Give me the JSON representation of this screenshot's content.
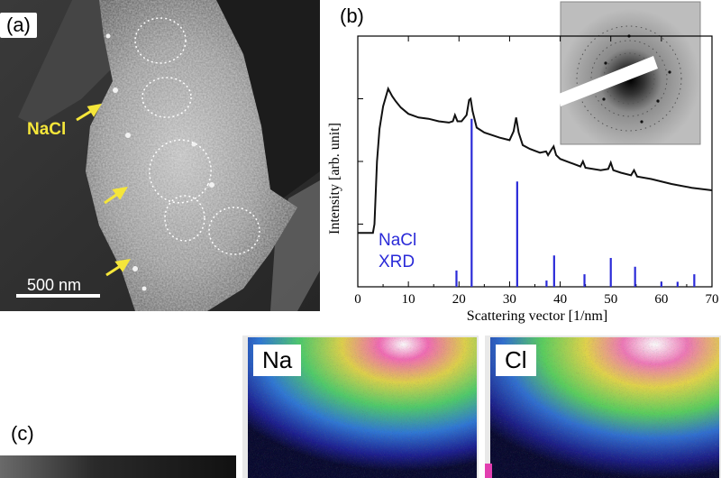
{
  "panel_a": {
    "label": "(a)",
    "annotation": "NaCl",
    "scale_bar": "500 nm"
  },
  "panel_b": {
    "label": "(b)",
    "legend_text": [
      "NaCl",
      "XRD"
    ]
  },
  "panel_c": {
    "label": "(c)",
    "maps": [
      {
        "element": "Na"
      },
      {
        "element": "Cl"
      }
    ]
  },
  "colors": {
    "measured_curve": "#111111",
    "xrd_bars": "#2a2ad8",
    "legend_text": "#2a2ad8",
    "nacl_annotation": "#f5e63a"
  },
  "chart_data": {
    "type": "line",
    "xlabel": "Scattering vector [1/nm]",
    "ylabel": "Intensity [arb. unit]",
    "xlim": [
      0,
      70
    ],
    "x_ticks": [
      0,
      10,
      20,
      30,
      40,
      50,
      60,
      70
    ],
    "series": [
      {
        "kind": "line",
        "x": [
          0,
          3.0,
          3.3,
          3.8,
          4.3,
          5.0,
          6.0,
          6.8,
          7.5,
          8.5,
          10,
          12,
          14,
          16,
          18,
          18.8,
          19.2,
          19.7,
          20.5,
          21.5,
          22.0,
          22.3,
          22.7,
          23.5,
          25,
          28,
          30,
          30.8,
          31.3,
          31.8,
          32.6,
          34,
          36,
          37.2,
          37.6,
          38.2,
          38.7,
          39.2,
          40,
          42,
          44,
          44.5,
          45,
          48,
          49.5,
          50.0,
          50.5,
          52,
          54,
          54.6,
          55.2,
          58,
          62,
          66,
          70
        ],
        "y": [
          0.215,
          0.215,
          0.25,
          0.5,
          0.63,
          0.72,
          0.79,
          0.76,
          0.74,
          0.715,
          0.69,
          0.675,
          0.67,
          0.66,
          0.655,
          0.66,
          0.685,
          0.66,
          0.66,
          0.685,
          0.745,
          0.75,
          0.7,
          0.635,
          0.615,
          0.595,
          0.585,
          0.62,
          0.675,
          0.615,
          0.565,
          0.55,
          0.535,
          0.54,
          0.525,
          0.545,
          0.56,
          0.525,
          0.51,
          0.495,
          0.48,
          0.5,
          0.475,
          0.465,
          0.47,
          0.495,
          0.465,
          0.455,
          0.445,
          0.465,
          0.44,
          0.43,
          0.41,
          0.395,
          0.385
        ]
      },
      {
        "kind": "stick",
        "x": [
          19.5,
          22.5,
          31.5,
          37.3,
          38.8,
          44.8,
          50.0,
          54.8,
          60.0,
          63.2,
          66.5
        ],
        "y": [
          0.065,
          0.67,
          0.42,
          0.025,
          0.125,
          0.05,
          0.115,
          0.08,
          0.02,
          0.02,
          0.05
        ]
      }
    ],
    "inset": "diffraction pattern"
  }
}
